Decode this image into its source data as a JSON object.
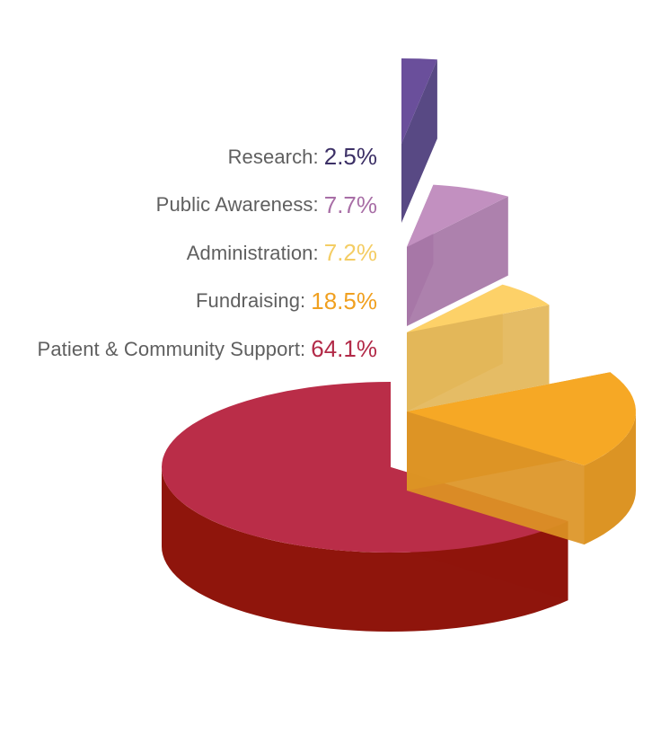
{
  "chart_data": {
    "type": "pie",
    "style": "3d-exploded",
    "slices": [
      {
        "label": "Research",
        "value": 2.5,
        "top_color": "#6a4f9b",
        "side_color": "#4a3a7a"
      },
      {
        "label": "Public Awareness",
        "value": 7.7,
        "top_color": "#c290c0",
        "side_color": "#a676a6"
      },
      {
        "label": "Administration",
        "value": 7.2,
        "top_color": "#fdd168",
        "side_color": "#e3b658"
      },
      {
        "label": "Fundraising",
        "value": 18.5,
        "top_color": "#f6a825",
        "side_color": "#dc9424"
      },
      {
        "label": "Patient & Community Support",
        "value": 64.1,
        "top_color": "#ba2d48",
        "side_color": "#8f150c"
      }
    ],
    "legend": [
      {
        "name": "Research:",
        "value": "2.5%",
        "color": "#3c3066"
      },
      {
        "name": "Public Awareness:",
        "value": "7.7%",
        "color": "#a86ea6"
      },
      {
        "name": "Administration:",
        "value": "7.2%",
        "color": "#f4cd64"
      },
      {
        "name": "Fundraising:",
        "value": "18.5%",
        "color": "#f0a020"
      },
      {
        "name": "Patient & Community Support:",
        "value": "64.1%",
        "color": "#b22a48"
      }
    ]
  }
}
